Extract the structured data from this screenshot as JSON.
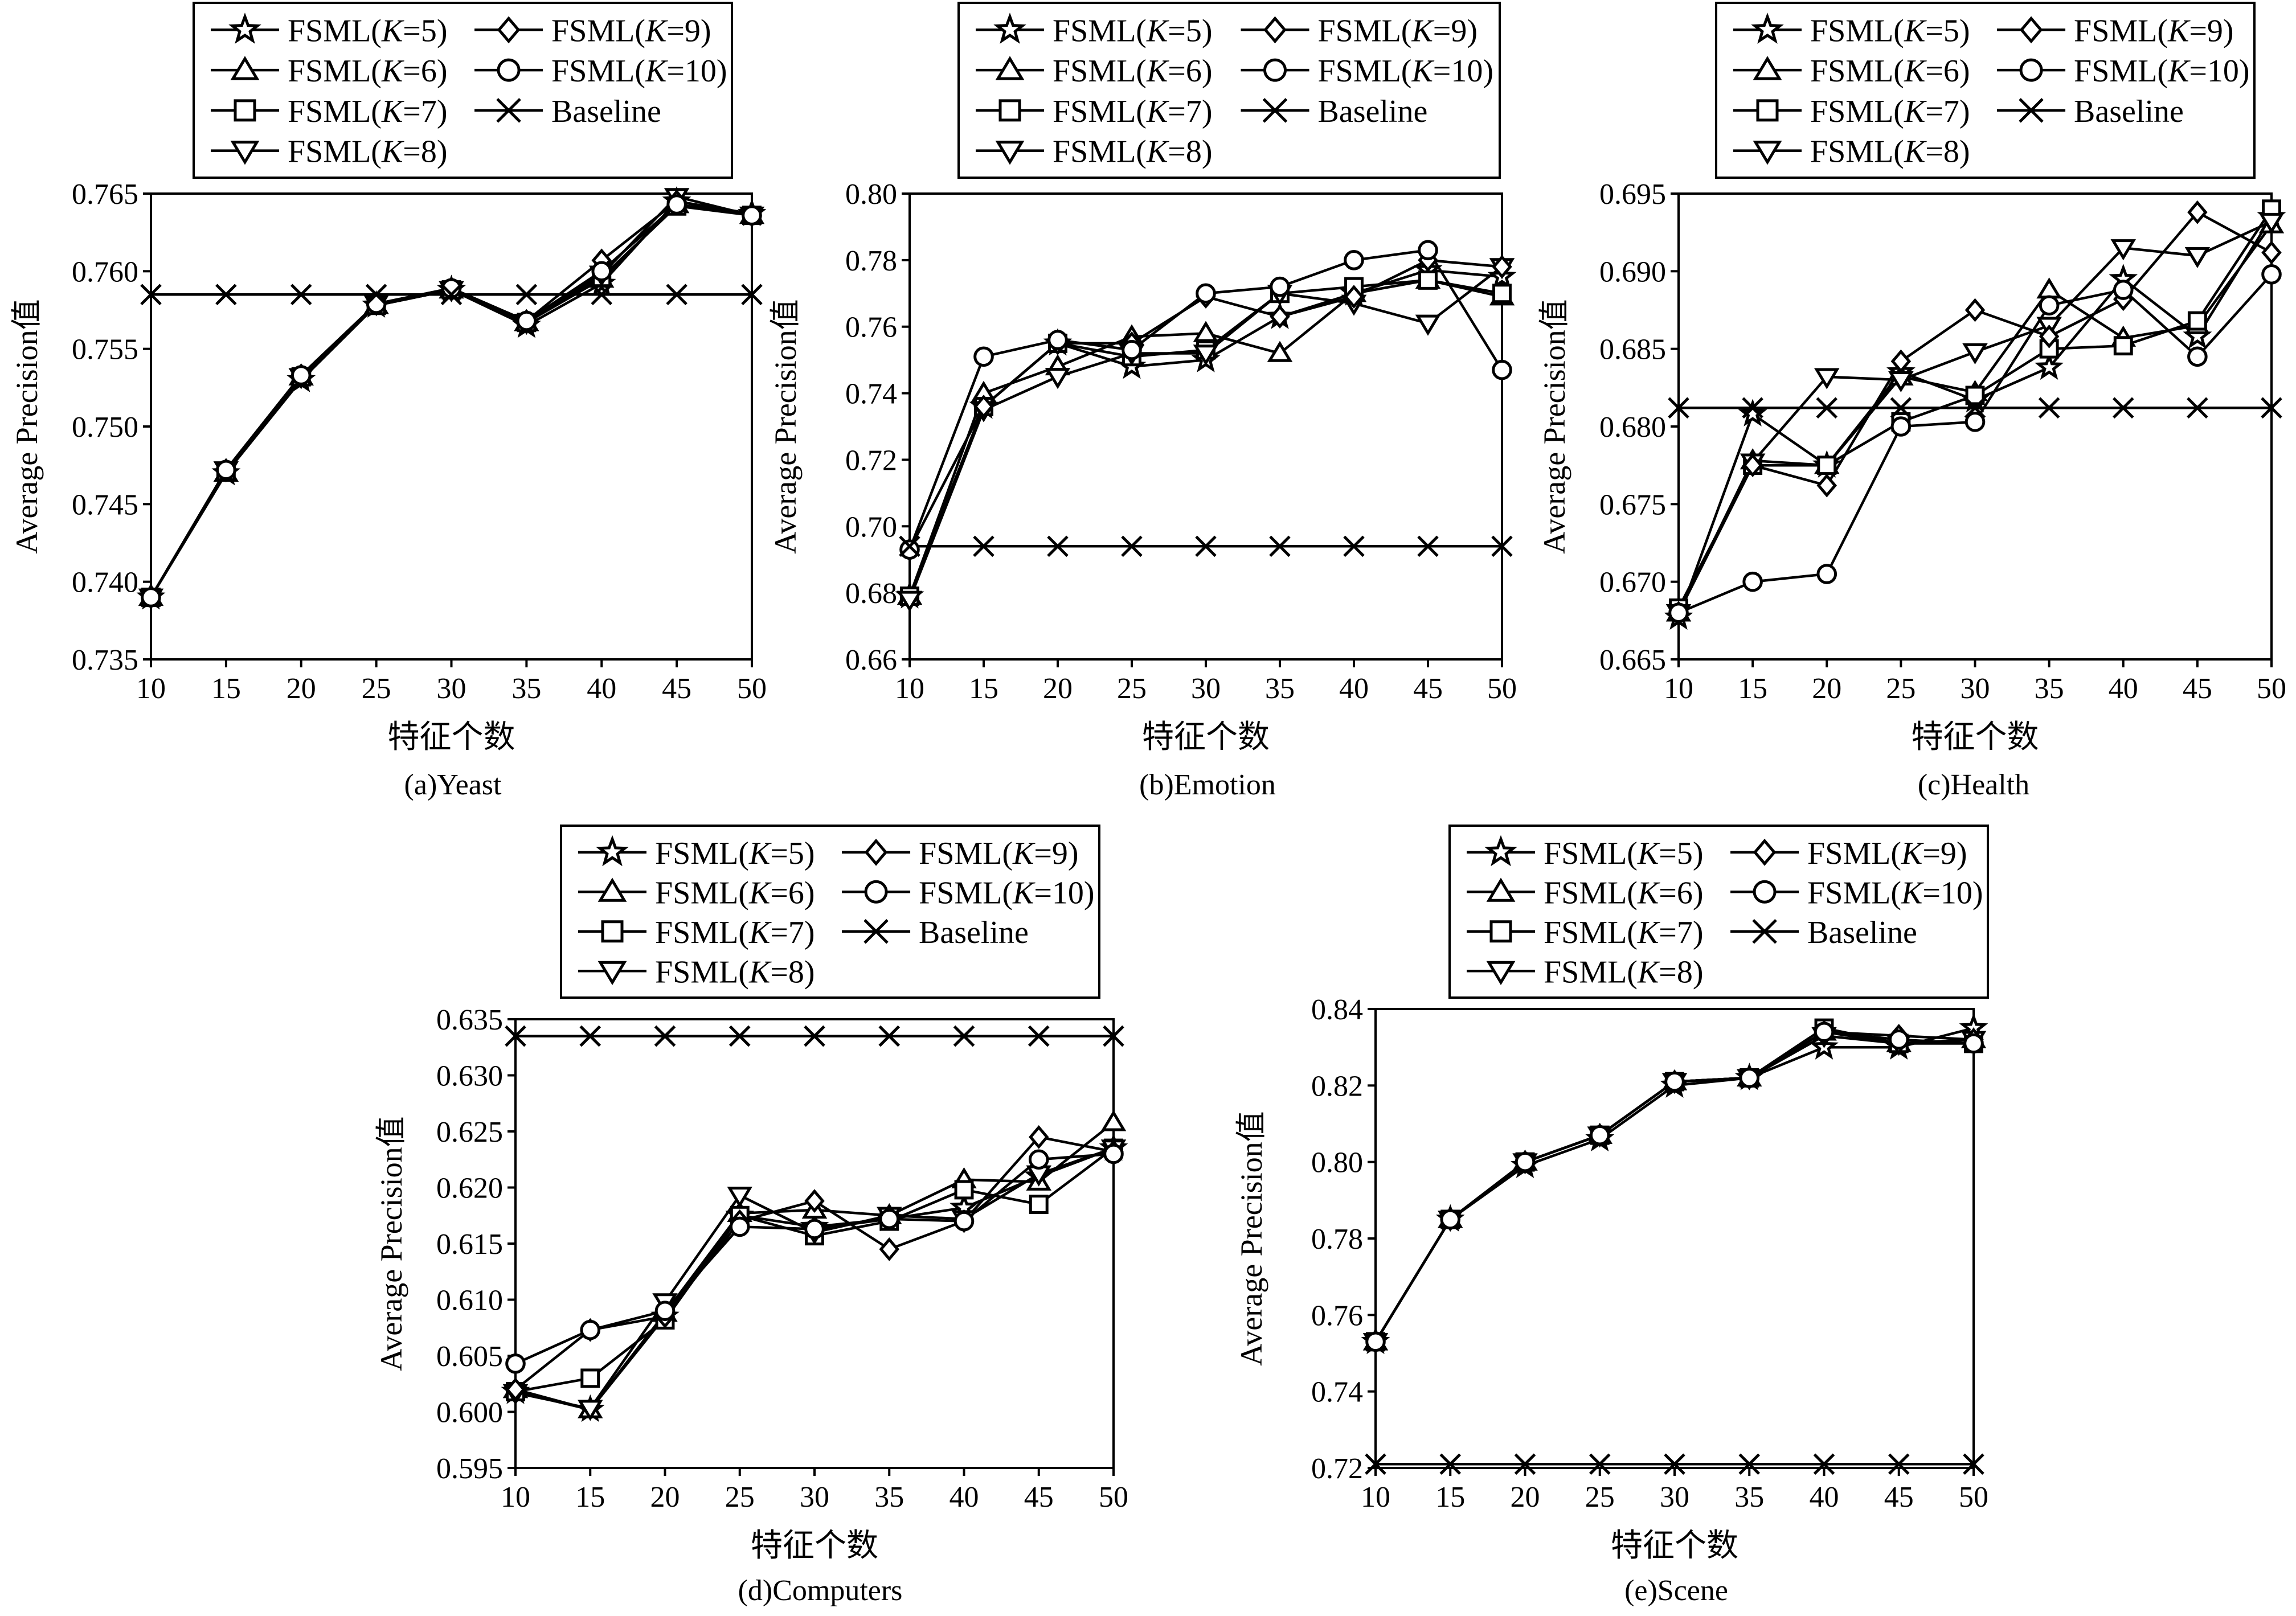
{
  "common": {
    "ylabel": "Average Precision值",
    "xlabel": "特征个数",
    "x": [
      10,
      15,
      20,
      25,
      30,
      35,
      40,
      45,
      50
    ],
    "legend_entries": [
      {
        "prefix": "FSML(",
        "k": "K",
        "suffix": "=5)",
        "marker": "star"
      },
      {
        "prefix": "FSML(",
        "k": "K",
        "suffix": "=6)",
        "marker": "triangle-up"
      },
      {
        "prefix": "FSML(",
        "k": "K",
        "suffix": "=7)",
        "marker": "square"
      },
      {
        "prefix": "FSML(",
        "k": "K",
        "suffix": "=8)",
        "marker": "triangle-down"
      },
      {
        "prefix": "FSML(",
        "k": "K",
        "suffix": "=9)",
        "marker": "diamond"
      },
      {
        "prefix": "FSML(",
        "k": "K",
        "suffix": "=10)",
        "marker": "circle"
      },
      {
        "prefix": "Baseline",
        "k": "",
        "suffix": "",
        "marker": "x"
      }
    ]
  },
  "chart_data": [
    {
      "type": "line",
      "caption": "(a)Yeast",
      "ylim": [
        0.735,
        0.765
      ],
      "yticks": [
        "0.735",
        "0.740",
        "0.745",
        "0.750",
        "0.755",
        "0.760",
        "0.765"
      ],
      "series": [
        {
          "name": "FSML(K=5)",
          "values": [
            0.739,
            0.747,
            0.753,
            0.7578,
            0.7588,
            0.7565,
            0.7592,
            0.7645,
            0.7637
          ]
        },
        {
          "name": "FSML(K=6)",
          "values": [
            0.739,
            0.747,
            0.7532,
            0.7578,
            0.7588,
            0.7567,
            0.7595,
            0.7643,
            0.7636
          ]
        },
        {
          "name": "FSML(K=7)",
          "values": [
            0.739,
            0.7471,
            0.7532,
            0.7578,
            0.7588,
            0.7567,
            0.7596,
            0.7642,
            0.7636
          ]
        },
        {
          "name": "FSML(K=8)",
          "values": [
            0.739,
            0.7472,
            0.7532,
            0.7579,
            0.7588,
            0.7567,
            0.7598,
            0.7648,
            0.7636
          ]
        },
        {
          "name": "FSML(K=9)",
          "values": [
            0.739,
            0.7472,
            0.7533,
            0.7579,
            0.7589,
            0.7568,
            0.7607,
            0.7645,
            0.7636
          ]
        },
        {
          "name": "FSML(K=10)",
          "values": [
            0.739,
            0.7472,
            0.7533,
            0.7579,
            0.7589,
            0.7568,
            0.76,
            0.7643,
            0.7636
          ]
        },
        {
          "name": "Baseline",
          "values": [
            0.7585,
            0.7585,
            0.7585,
            0.7585,
            0.7585,
            0.7585,
            0.7585,
            0.7585,
            0.7585
          ]
        }
      ]
    },
    {
      "type": "line",
      "caption": "(b)Emotion",
      "ylim": [
        0.66,
        0.8
      ],
      "yticks": [
        "0.66",
        "0.68",
        "0.70",
        "0.72",
        "0.74",
        "0.76",
        "0.78",
        "0.80"
      ],
      "series": [
        {
          "name": "FSML(K=5)",
          "values": [
            0.679,
            0.736,
            0.755,
            0.748,
            0.75,
            0.763,
            0.77,
            0.777,
            0.775
          ]
        },
        {
          "name": "FSML(K=6)",
          "values": [
            0.679,
            0.74,
            0.748,
            0.757,
            0.758,
            0.752,
            0.77,
            0.774,
            0.769
          ]
        },
        {
          "name": "FSML(K=7)",
          "values": [
            0.679,
            0.736,
            0.755,
            0.751,
            0.753,
            0.77,
            0.772,
            0.774,
            0.77
          ]
        },
        {
          "name": "FSML(K=8)",
          "values": [
            0.678,
            0.735,
            0.745,
            0.752,
            0.752,
            0.77,
            0.767,
            0.761,
            0.778
          ]
        },
        {
          "name": "FSML(K=9)",
          "values": [
            0.693,
            0.736,
            0.755,
            0.755,
            0.769,
            0.763,
            0.769,
            0.78,
            0.778
          ]
        },
        {
          "name": "FSML(K=10)",
          "values": [
            0.693,
            0.751,
            0.756,
            0.753,
            0.77,
            0.772,
            0.78,
            0.783,
            0.747
          ]
        },
        {
          "name": "Baseline",
          "values": [
            0.694,
            0.694,
            0.694,
            0.694,
            0.694,
            0.694,
            0.694,
            0.694,
            0.694
          ]
        }
      ]
    },
    {
      "type": "line",
      "caption": "(c)Health",
      "ylim": [
        0.665,
        0.695
      ],
      "yticks": [
        "0.665",
        "0.670",
        "0.675",
        "0.680",
        "0.685",
        "0.690",
        "0.695"
      ],
      "series": [
        {
          "name": "FSML(K=5)",
          "values": [
            0.6677,
            0.6808,
            0.6775,
            0.6835,
            0.6817,
            0.6838,
            0.6895,
            0.6858,
            0.6935
          ]
        },
        {
          "name": "FSML(K=6)",
          "values": [
            0.668,
            0.6778,
            0.6775,
            0.6832,
            0.6822,
            0.6888,
            0.6857,
            0.6865,
            0.693
          ]
        },
        {
          "name": "FSML(K=7)",
          "values": [
            0.6683,
            0.6775,
            0.6775,
            0.6803,
            0.682,
            0.685,
            0.6852,
            0.6868,
            0.694
          ]
        },
        {
          "name": "FSML(K=8)",
          "values": [
            0.668,
            0.6777,
            0.6832,
            0.683,
            0.6848,
            0.6865,
            0.6915,
            0.691,
            0.6932
          ]
        },
        {
          "name": "FSML(K=9)",
          "values": [
            0.668,
            0.6775,
            0.6762,
            0.6842,
            0.6875,
            0.6858,
            0.6882,
            0.6938,
            0.6912
          ]
        },
        {
          "name": "FSML(K=10)",
          "values": [
            0.668,
            0.67,
            0.6705,
            0.68,
            0.6803,
            0.6878,
            0.6888,
            0.6845,
            0.6898
          ]
        },
        {
          "name": "Baseline",
          "values": [
            0.6812,
            0.6812,
            0.6812,
            0.6812,
            0.6812,
            0.6812,
            0.6812,
            0.6812,
            0.6812
          ]
        }
      ]
    },
    {
      "type": "line",
      "caption": "(d)Computers",
      "ylim": [
        0.595,
        0.635
      ],
      "yticks": [
        "0.595",
        "0.600",
        "0.605",
        "0.610",
        "0.615",
        "0.620",
        "0.625",
        "0.630",
        "0.635"
      ],
      "series": [
        {
          "name": "FSML(K=5)",
          "values": [
            0.6018,
            0.6002,
            0.6085,
            0.6175,
            0.6165,
            0.6172,
            0.6182,
            0.621,
            0.6235
          ]
        },
        {
          "name": "FSML(K=6)",
          "values": [
            0.602,
            0.6002,
            0.6088,
            0.6177,
            0.618,
            0.6175,
            0.6207,
            0.6205,
            0.6258
          ]
        },
        {
          "name": "FSML(K=7)",
          "values": [
            0.6018,
            0.603,
            0.6082,
            0.6175,
            0.6157,
            0.617,
            0.6198,
            0.6185,
            0.6235
          ]
        },
        {
          "name": "FSML(K=8)",
          "values": [
            0.6017,
            0.6003,
            0.6098,
            0.6193,
            0.616,
            0.6175,
            0.6172,
            0.6212,
            0.6235
          ]
        },
        {
          "name": "FSML(K=9)",
          "values": [
            0.602,
            0.6073,
            0.6085,
            0.617,
            0.6188,
            0.6145,
            0.617,
            0.6245,
            0.6232
          ]
        },
        {
          "name": "FSML(K=10)",
          "values": [
            0.6043,
            0.6073,
            0.609,
            0.6165,
            0.6163,
            0.6172,
            0.617,
            0.6225,
            0.623
          ]
        },
        {
          "name": "Baseline",
          "values": [
            0.6335,
            0.6335,
            0.6335,
            0.6335,
            0.6335,
            0.6335,
            0.6335,
            0.6335,
            0.6335
          ]
        }
      ]
    },
    {
      "type": "line",
      "caption": "(e)Scene",
      "ylim": [
        0.72,
        0.84
      ],
      "yticks": [
        "0.72",
        "0.74",
        "0.76",
        "0.78",
        "0.80",
        "0.82",
        "0.84"
      ],
      "series": [
        {
          "name": "FSML(K=5)",
          "values": [
            0.753,
            0.785,
            0.799,
            0.806,
            0.82,
            0.822,
            0.83,
            0.83,
            0.835
          ]
        },
        {
          "name": "FSML(K=6)",
          "values": [
            0.753,
            0.785,
            0.8,
            0.807,
            0.821,
            0.822,
            0.834,
            0.831,
            0.832
          ]
        },
        {
          "name": "FSML(K=7)",
          "values": [
            0.753,
            0.785,
            0.8,
            0.807,
            0.821,
            0.822,
            0.835,
            0.831,
            0.831
          ]
        },
        {
          "name": "FSML(K=8)",
          "values": [
            0.753,
            0.785,
            0.8,
            0.807,
            0.821,
            0.822,
            0.833,
            0.831,
            0.832
          ]
        },
        {
          "name": "FSML(K=9)",
          "values": [
            0.753,
            0.785,
            0.8,
            0.807,
            0.821,
            0.822,
            0.834,
            0.833,
            0.832
          ]
        },
        {
          "name": "FSML(K=10)",
          "values": [
            0.753,
            0.785,
            0.8,
            0.807,
            0.821,
            0.822,
            0.834,
            0.832,
            0.831
          ]
        },
        {
          "name": "Baseline",
          "values": [
            0.721,
            0.721,
            0.721,
            0.721,
            0.721,
            0.721,
            0.721,
            0.721,
            0.721
          ]
        }
      ]
    }
  ]
}
